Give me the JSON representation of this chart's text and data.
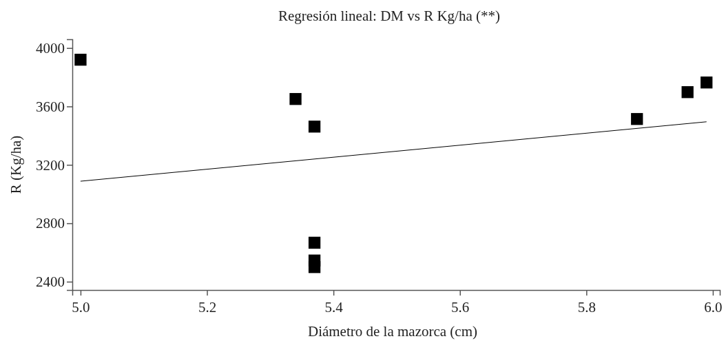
{
  "chart_data": {
    "type": "scatter",
    "title": "Regresión lineal: DM vs R Kg/ha (**)",
    "xlabel": "Diámetro de la mazorca (cm)",
    "ylabel": "R (Kg/ha)",
    "xlim": [
      4.987,
      6.011
    ],
    "xticks": [
      {
        "value": 5.0,
        "label": "5.0"
      },
      5.2,
      5.4,
      5.6,
      5.8,
      {
        "value": 6.0,
        "label": "6.0"
      }
    ],
    "ylim": [
      2343,
      4060
    ],
    "yticks": [
      2400,
      2800,
      3200,
      3600,
      4000
    ],
    "grid": false,
    "marker": "square",
    "series": [
      {
        "color": "#000000",
        "x": [
          5.0,
          5.34,
          5.37,
          5.88,
          5.96,
          5.99,
          5.37,
          5.37,
          5.37
        ],
        "values": [
          3920,
          3651,
          3462,
          3514,
          3698,
          3764,
          2667,
          2545,
          2500
        ]
      },
      {
        "type": "line",
        "color": "#000000",
        "marker": "none",
        "line_style": "solid",
        "x": [
          5.0,
          5.99
        ],
        "values": [
          3088,
          3495
        ]
      }
    ]
  }
}
